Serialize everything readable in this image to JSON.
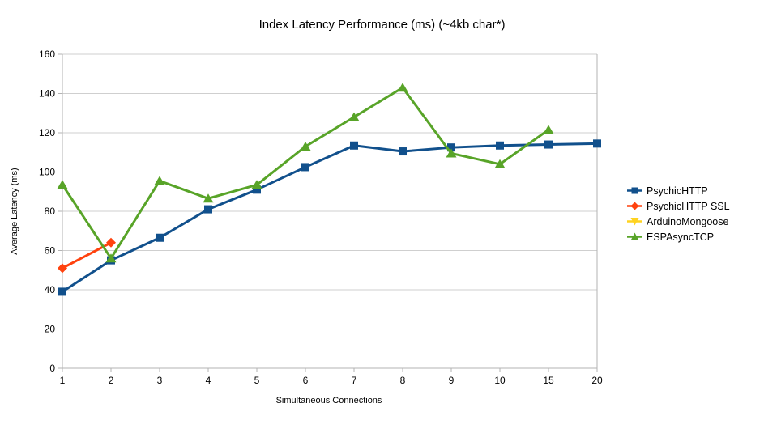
{
  "chart_data": {
    "type": "line",
    "title": "Index Latency Performance (ms) (~4kb char*)",
    "xlabel": "Simultaneous Connections",
    "ylabel": "Average Latency (ms)",
    "categories": [
      "1",
      "2",
      "3",
      "4",
      "5",
      "6",
      "7",
      "8",
      "9",
      "10",
      "15",
      "20"
    ],
    "ylim": [
      0,
      160
    ],
    "yticks": [
      0,
      20,
      40,
      60,
      80,
      100,
      120,
      140,
      160
    ],
    "grid": "horizontal",
    "legend_position": "right",
    "series": [
      {
        "name": "PsychicHTTP",
        "color": "#11508C",
        "marker": "square",
        "values": [
          39,
          55,
          66.5,
          81,
          91,
          102.5,
          113.5,
          110.5,
          112.5,
          113.5,
          114,
          114.5
        ]
      },
      {
        "name": "PsychicHTTP SSL",
        "color": "#FF420E",
        "marker": "diamond",
        "values": [
          51,
          64,
          null,
          null,
          null,
          null,
          null,
          null,
          null,
          null,
          null,
          null
        ]
      },
      {
        "name": "ArduinoMongoose",
        "color": "#FFD320",
        "marker": "triangle-down",
        "values": [
          null,
          null,
          null,
          null,
          null,
          null,
          null,
          null,
          null,
          null,
          null,
          null
        ]
      },
      {
        "name": "ESPAsyncTCP",
        "color": "#58A428",
        "marker": "triangle-up",
        "values": [
          93.5,
          56,
          95.5,
          86.5,
          93.5,
          113,
          128,
          143,
          109.5,
          104,
          121.5,
          null
        ]
      }
    ]
  },
  "colors": {
    "background": "#FFFFFF",
    "grid": "#CFCFCF",
    "axis": "#B3B3B3",
    "text": "#000000"
  }
}
